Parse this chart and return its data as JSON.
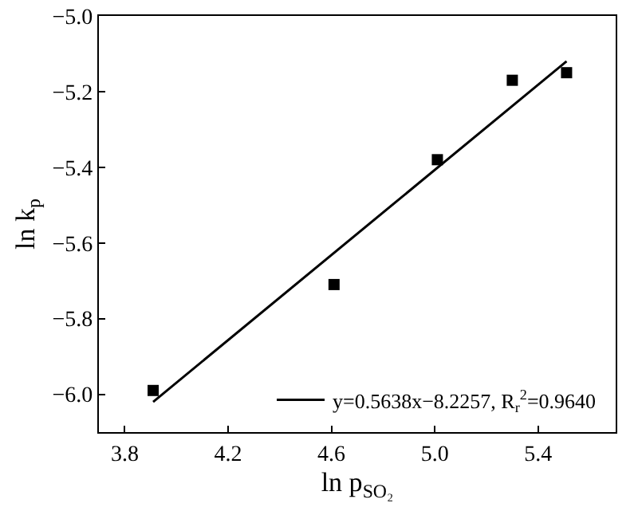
{
  "chart_data": {
    "type": "scatter",
    "xlabel": "ln p$_{SO₂}$",
    "ylabel": "ln k$_{p}$",
    "xlim": [
      3.7,
      5.7
    ],
    "xticks": [
      3.8,
      4.2,
      4.6,
      {
        "value": 5,
        "label": "5.0"
      },
      5.4
    ],
    "ylim": [
      -6.1,
      -5.0
    ],
    "yticks": [
      {
        "value": -6,
        "label": "−6.0"
      },
      {
        "value": -5.8,
        "label": "−5.8"
      },
      {
        "value": -5.6,
        "label": "−5.6"
      },
      {
        "value": -5.4,
        "label": "−5.4"
      },
      {
        "value": -5.2,
        "label": "−5.2"
      },
      {
        "value": -5,
        "label": "−5.0"
      }
    ],
    "grid": false,
    "legend": "bottom right",
    "series": [
      {
        "color": "#000000",
        "marker": "square",
        "x": [
          3.91,
          4.61,
          5.01,
          5.3,
          5.51
        ],
        "values": [
          -5.99,
          -5.71,
          -5.38,
          -5.17,
          -5.15
        ]
      },
      {
        "type": "line",
        "name": "y=0.5638x−8.2257, R$_{r}$$^{2}$=0.9640",
        "color": "#000000",
        "marker": "none",
        "line_style": "solid",
        "x": [
          3.91,
          5.51
        ],
        "values": [
          -6.02,
          -5.12
        ]
      }
    ]
  }
}
